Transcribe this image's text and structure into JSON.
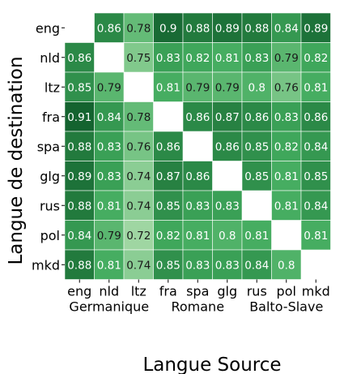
{
  "chart_data": {
    "type": "heatmap",
    "title": "",
    "xlabel": "Langue Source",
    "ylabel": "Langue de destination",
    "x_categories": [
      "eng",
      "nld",
      "ltz",
      "fra",
      "spa",
      "glg",
      "rus",
      "pol",
      "mkd"
    ],
    "y_categories": [
      "eng",
      "nld",
      "ltz",
      "fra",
      "spa",
      "glg",
      "rus",
      "pol",
      "mkd"
    ],
    "x_groups": [
      {
        "label": "Germanique",
        "members": [
          "eng",
          "nld",
          "ltz"
        ]
      },
      {
        "label": "Romane",
        "members": [
          "fra",
          "spa",
          "glg"
        ]
      },
      {
        "label": "Balto-Slave",
        "members": [
          "rus",
          "pol",
          "mkd"
        ]
      }
    ],
    "values": [
      [
        null,
        0.86,
        0.78,
        0.9,
        0.88,
        0.89,
        0.88,
        0.84,
        0.89
      ],
      [
        0.86,
        null,
        0.75,
        0.83,
        0.82,
        0.81,
        0.83,
        0.79,
        0.82
      ],
      [
        0.85,
        0.79,
        null,
        0.81,
        0.79,
        0.79,
        0.8,
        0.76,
        0.81
      ],
      [
        0.91,
        0.84,
        0.78,
        null,
        0.86,
        0.87,
        0.86,
        0.83,
        0.86
      ],
      [
        0.88,
        0.83,
        0.76,
        0.86,
        null,
        0.86,
        0.85,
        0.82,
        0.84
      ],
      [
        0.89,
        0.83,
        0.74,
        0.87,
        0.86,
        null,
        0.85,
        0.81,
        0.85
      ],
      [
        0.88,
        0.81,
        0.74,
        0.85,
        0.83,
        0.83,
        null,
        0.81,
        0.84
      ],
      [
        0.84,
        0.79,
        0.72,
        0.82,
        0.81,
        0.8,
        0.81,
        null,
        0.81
      ],
      [
        0.88,
        0.81,
        0.74,
        0.85,
        0.83,
        0.83,
        0.84,
        0.8,
        null
      ]
    ],
    "color_scale": {
      "low": "#c7e9c0",
      "high": "#00441b",
      "dark_text": "#1a1a1a",
      "light_text": "#ffffff"
    }
  }
}
